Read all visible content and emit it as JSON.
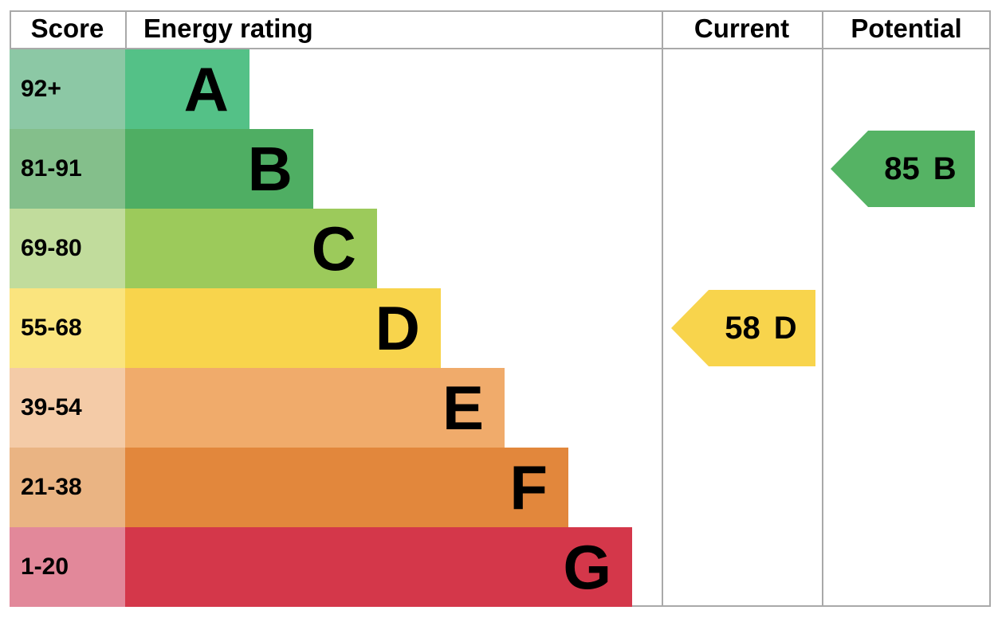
{
  "header": {
    "score": "Score",
    "energy_rating": "Energy rating",
    "current": "Current",
    "potential": "Potential"
  },
  "bands": [
    {
      "letter": "A",
      "score_range": "92+",
      "bar_color": "#54c187",
      "score_color": "#8cc8a5"
    },
    {
      "letter": "B",
      "score_range": "81-91",
      "bar_color": "#4fae63",
      "score_color": "#84bf8b"
    },
    {
      "letter": "C",
      "score_range": "69-80",
      "bar_color": "#9cca5b",
      "score_color": "#c1dc9c"
    },
    {
      "letter": "D",
      "score_range": "55-68",
      "bar_color": "#f8d44c",
      "score_color": "#fae47e"
    },
    {
      "letter": "E",
      "score_range": "39-54",
      "bar_color": "#f0ab6b",
      "score_color": "#f4cba7"
    },
    {
      "letter": "F",
      "score_range": "21-38",
      "bar_color": "#e2873c",
      "score_color": "#eab483"
    },
    {
      "letter": "G",
      "score_range": "1-20",
      "bar_color": "#d4374a",
      "score_color": "#e2889a"
    }
  ],
  "current": {
    "value": "58",
    "letter": "D",
    "color": "#f8d44c"
  },
  "potential": {
    "value": "85",
    "letter": "B",
    "color": "#55b364"
  },
  "border_color": "#a9a9a9",
  "chart_data": {
    "type": "bar",
    "title": "Energy rating",
    "categories": [
      "A",
      "B",
      "C",
      "D",
      "E",
      "F",
      "G"
    ],
    "score_ranges": [
      "92+",
      "81-91",
      "69-80",
      "55-68",
      "39-54",
      "21-38",
      "1-20"
    ],
    "current": {
      "score": 58,
      "band": "D"
    },
    "potential": {
      "score": 85,
      "band": "B"
    },
    "legend_position": "none",
    "grid": false
  }
}
